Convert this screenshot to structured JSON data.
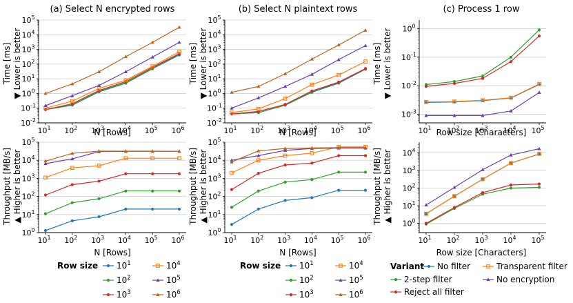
{
  "panel_titles": [
    "(a) Select N encrypted rows",
    "(b) Select N plaintext rows",
    "(c) Process 1 row"
  ],
  "ylabels": {
    "time": "Time [ms]",
    "time_note": "▼ Lower is better",
    "throughput": "Throughput [MB/s]",
    "throughput_note": "▲ Higher is better"
  },
  "xlabels": {
    "rows": "N [Rows]",
    "chars": "Row size [Characters]"
  },
  "legend_rowsize": {
    "title": "Row size",
    "entries": [
      {
        "label": "10^1",
        "base": "10",
        "exp": "1",
        "color": "#1f77b4",
        "marker": "circle"
      },
      {
        "label": "10^2",
        "base": "10",
        "exp": "2",
        "color": "#2ca02c",
        "marker": "circle"
      },
      {
        "label": "10^3",
        "base": "10",
        "exp": "3",
        "color": "#d62728",
        "marker": "circle"
      },
      {
        "label": "10^4",
        "base": "10",
        "exp": "4",
        "color": "#ff7f0e",
        "marker": "square"
      },
      {
        "label": "10^5",
        "base": "10",
        "exp": "5",
        "color": "#6a3fb5",
        "marker": "triangle"
      },
      {
        "label": "10^6",
        "base": "10",
        "exp": "6",
        "color": "#b5651d",
        "marker": "triangle"
      }
    ]
  },
  "legend_variant": {
    "title": "Variant",
    "entries": [
      {
        "label": "No filter",
        "color": "#1f77b4",
        "marker": "circle"
      },
      {
        "label": "Transparent filter",
        "color": "#ff7f0e",
        "marker": "square"
      },
      {
        "label": "2-step filter",
        "color": "#2ca02c",
        "marker": "circle"
      },
      {
        "label": "No encryption",
        "color": "#6a3fb5",
        "marker": "triangle"
      },
      {
        "label": "Reject all filter",
        "color": "#d62728",
        "marker": "circle"
      }
    ]
  },
  "chart_data": [
    {
      "id": "a-time",
      "type": "line",
      "title": "(a) Select N encrypted rows",
      "xlabel": "N [Rows]",
      "ylabel": "Time [ms]",
      "xscale": "log",
      "yscale": "log",
      "x": [
        10,
        100,
        1000,
        10000,
        100000,
        1000000
      ],
      "xlim": [
        10,
        1000000
      ],
      "ylim": [
        0.01,
        100000
      ],
      "series": [
        {
          "name": "10^1",
          "values": [
            0.08,
            0.16,
            1.3,
            5,
            48,
            420
          ]
        },
        {
          "name": "10^2",
          "values": [
            0.08,
            0.17,
            1.4,
            5.5,
            52,
            480
          ]
        },
        {
          "name": "10^3",
          "values": [
            0.08,
            0.2,
            1.6,
            6.5,
            60,
            520
          ]
        },
        {
          "name": "10^4",
          "values": [
            0.1,
            0.3,
            2.2,
            8,
            70,
            700
          ]
        },
        {
          "name": "10^5",
          "values": [
            0.15,
            0.7,
            3.5,
            30,
            300,
            3000
          ]
        },
        {
          "name": "10^6",
          "values": [
            1,
            4.5,
            30,
            320,
            3000,
            32000
          ]
        }
      ]
    },
    {
      "id": "b-time",
      "type": "line",
      "title": "(b) Select N plaintext rows",
      "xlabel": "N [Rows]",
      "ylabel": "Time [ms]",
      "xscale": "log",
      "yscale": "log",
      "x": [
        10,
        100,
        1000,
        10000,
        100000,
        1000000
      ],
      "xlim": [
        10,
        1000000
      ],
      "ylim": [
        0.01,
        100000
      ],
      "series": [
        {
          "name": "10^1",
          "values": [
            0.04,
            0.05,
            0.16,
            1.2,
            5,
            45
          ]
        },
        {
          "name": "10^2",
          "values": [
            0.04,
            0.05,
            0.16,
            1.3,
            5.5,
            48
          ]
        },
        {
          "name": "10^3",
          "values": [
            0.04,
            0.06,
            0.18,
            1.5,
            6,
            50
          ]
        },
        {
          "name": "10^4",
          "values": [
            0.05,
            0.09,
            0.45,
            4,
            18,
            150
          ]
        },
        {
          "name": "10^5",
          "values": [
            0.1,
            0.5,
            3,
            20,
            200,
            1800
          ]
        },
        {
          "name": "10^6",
          "values": [
            1.2,
            3,
            22,
            220,
            2000,
            20000
          ]
        }
      ]
    },
    {
      "id": "c-time",
      "type": "line",
      "title": "(c) Process 1 row",
      "xlabel": "Row size [Characters]",
      "ylabel": "Time [ms]",
      "xscale": "log",
      "yscale": "log",
      "x": [
        10,
        100,
        1000,
        10000,
        100000
      ],
      "xlim": [
        10,
        100000
      ],
      "ylim": [
        0.0005,
        2
      ],
      "series": [
        {
          "name": "No filter",
          "values": [
            0.0026,
            0.0027,
            0.003,
            0.0037,
            0.011
          ]
        },
        {
          "name": "2-step filter",
          "values": [
            0.011,
            0.014,
            0.022,
            0.1,
            0.9
          ]
        },
        {
          "name": "Reject all filter",
          "values": [
            0.0095,
            0.012,
            0.018,
            0.07,
            0.55
          ]
        },
        {
          "name": "Transparent filter",
          "values": [
            0.0027,
            0.0028,
            0.0031,
            0.0038,
            0.0115
          ]
        },
        {
          "name": "No encryption",
          "values": [
            0.0009,
            0.0009,
            0.0009,
            0.0013,
            0.0058
          ]
        }
      ]
    },
    {
      "id": "a-thr",
      "type": "line",
      "title": "",
      "xlabel": "N [Rows]",
      "ylabel": "Throughput [MB/s]",
      "xscale": "log",
      "yscale": "log",
      "x": [
        10,
        100,
        1000,
        10000,
        100000,
        1000000
      ],
      "xlim": [
        10,
        1000000
      ],
      "ylim": [
        1,
        100000
      ],
      "series": [
        {
          "name": "10^1",
          "values": [
            1.3,
            4.5,
            7.5,
            20,
            20,
            20
          ]
        },
        {
          "name": "10^2",
          "values": [
            11,
            45,
            75,
            200,
            200,
            200
          ]
        },
        {
          "name": "10^3",
          "values": [
            120,
            450,
            700,
            1800,
            1800,
            1800
          ]
        },
        {
          "name": "10^4",
          "values": [
            1100,
            3800,
            5000,
            13000,
            13000,
            13000
          ]
        },
        {
          "name": "10^5",
          "values": [
            6500,
            12000,
            30000,
            31000,
            31000,
            31000
          ]
        },
        {
          "name": "10^6",
          "values": [
            9000,
            24000,
            32000,
            32000,
            32000,
            31000
          ]
        }
      ]
    },
    {
      "id": "b-thr",
      "type": "line",
      "title": "",
      "xlabel": "N [Rows]",
      "ylabel": "Throughput [MB/s]",
      "xscale": "log",
      "yscale": "log",
      "x": [
        10,
        100,
        1000,
        10000,
        100000,
        1000000
      ],
      "xlim": [
        10,
        1000000
      ],
      "ylim": [
        1,
        100000
      ],
      "series": [
        {
          "name": "10^1",
          "values": [
            2.8,
            20,
            60,
            85,
            220,
            220
          ]
        },
        {
          "name": "10^2",
          "values": [
            25,
            200,
            620,
            850,
            2200,
            2200
          ]
        },
        {
          "name": "10^3",
          "values": [
            240,
            1900,
            5500,
            7000,
            18000,
            18000
          ]
        },
        {
          "name": "10^4",
          "values": [
            2000,
            10000,
            18000,
            25000,
            55000,
            55000
          ]
        },
        {
          "name": "10^5",
          "values": [
            10000,
            18000,
            35000,
            45000,
            47000,
            47000
          ]
        },
        {
          "name": "10^6",
          "values": [
            8000,
            33000,
            45000,
            48000,
            50000,
            50000
          ]
        }
      ]
    },
    {
      "id": "c-thr",
      "type": "line",
      "title": "",
      "xlabel": "Row size [Characters]",
      "ylabel": "Throughput [MB/s]",
      "xscale": "log",
      "yscale": "log",
      "x": [
        10,
        100,
        1000,
        10000,
        100000
      ],
      "xlim": [
        10,
        100000
      ],
      "ylim": [
        0.3,
        40000
      ],
      "series": [
        {
          "name": "No filter",
          "values": [
            3.5,
            35,
            320,
            2600,
            8500
          ]
        },
        {
          "name": "2-step filter",
          "values": [
            0.9,
            7,
            45,
            100,
            110
          ]
        },
        {
          "name": "Reject all filter",
          "values": [
            1,
            8,
            55,
            150,
            170
          ]
        },
        {
          "name": "Transparent filter",
          "values": [
            3.5,
            35,
            320,
            2600,
            8700
          ]
        },
        {
          "name": "No encryption",
          "values": [
            11,
            110,
            1100,
            7500,
            17000
          ]
        }
      ]
    }
  ]
}
